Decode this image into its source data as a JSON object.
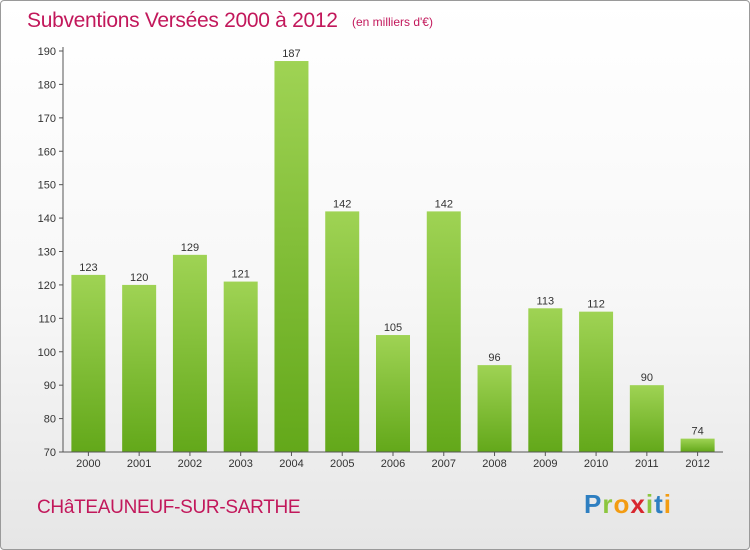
{
  "header": {
    "title": "Subventions Versées 2000 à 2012",
    "subtitle": "(en milliers d'€)"
  },
  "footer": {
    "town": "CHâTEAUNEUF-SUR-SARTHE",
    "logo_letters": [
      "P",
      "r",
      "o",
      "x",
      "i",
      "t",
      "i"
    ],
    "logo_colors": [
      "#2e7fc1",
      "#8cc63f",
      "#f39c12",
      "#d8262e",
      "#8cc63f",
      "#2e7fc1",
      "#f39c12"
    ]
  },
  "colors": {
    "bar_light": "#9fd354",
    "bar_dark": "#63a81a",
    "axis": "#555555",
    "grid": "#e9e9e9",
    "text": "#333333",
    "accent": "#c2185b"
  },
  "chart_data": {
    "type": "bar",
    "categories": [
      "2000",
      "2001",
      "2002",
      "2003",
      "2004",
      "2005",
      "2006",
      "2007",
      "2008",
      "2009",
      "2010",
      "2011",
      "2012"
    ],
    "values": [
      123,
      120,
      129,
      121,
      187,
      142,
      105,
      142,
      96,
      113,
      112,
      90,
      74
    ],
    "ylim": [
      70,
      190
    ],
    "yticks": [
      70,
      80,
      90,
      100,
      110,
      120,
      130,
      140,
      150,
      160,
      170,
      180,
      190
    ],
    "grid": false,
    "legend": "none"
  }
}
